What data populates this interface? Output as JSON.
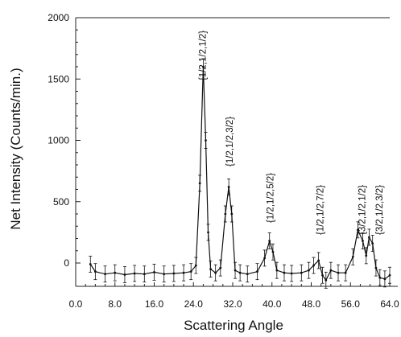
{
  "chart_data": {
    "type": "line",
    "title": "",
    "xlabel": "Scattering Angle",
    "ylabel": "Net Intensity (Counts/min.)",
    "xlim": [
      0,
      64
    ],
    "ylim": [
      -200,
      2000
    ],
    "x_tick_labels": [
      "0.0",
      "8.0",
      "16.0",
      "24.0",
      "32.0",
      "40.0",
      "48.0",
      "56.0",
      "64.0"
    ],
    "y_tick_labels": [
      "0",
      "500",
      "1000",
      "1500",
      "2000"
    ],
    "x_ticks": [
      0,
      8,
      16,
      24,
      32,
      40,
      48,
      56,
      64
    ],
    "y_ticks": [
      0,
      500,
      1000,
      1500,
      2000
    ],
    "grid": false,
    "series": [
      {
        "x": [
          3.0,
          4.0,
          6.0,
          8.0,
          10.0,
          12.0,
          14.0,
          16.0,
          18.0,
          20.0,
          22.0,
          23.5,
          24.5,
          25.3,
          26.0,
          26.5,
          27.0,
          27.5,
          28.5,
          29.5,
          30.5,
          31.2,
          31.8,
          32.5,
          33.5,
          35.0,
          37.0,
          38.5,
          39.5,
          40.2,
          41.0,
          42.5,
          44.0,
          46.0,
          47.5,
          48.5,
          49.5,
          50.3,
          51.0,
          52.0,
          53.5,
          55.0,
          56.5,
          57.5,
          58.5,
          59.2,
          59.8,
          60.5,
          61.2,
          62.0,
          63.0,
          64.0
        ],
        "values": [
          -10,
          -70,
          -90,
          -80,
          -95,
          -85,
          -90,
          -75,
          -90,
          -85,
          -80,
          -70,
          -20,
          650,
          1600,
          1000,
          250,
          -50,
          -80,
          -40,
          400,
          620,
          400,
          -60,
          -80,
          -90,
          -70,
          40,
          180,
          90,
          -60,
          -80,
          -85,
          -80,
          -60,
          -20,
          20,
          -100,
          -140,
          -60,
          -80,
          -80,
          50,
          270,
          180,
          60,
          210,
          160,
          -40,
          -120,
          -130,
          -100
        ]
      }
    ],
    "annotations": [
      "{1/2,1/2,1/2}",
      "{1/2,1/2,3/2}",
      "{1/2,1/2,5/2}",
      "{1/2,1/2,7/2}",
      "{3/2,1/2,1/2}",
      "{3/2,1/2,3/2}"
    ],
    "annotation_x": [
      26.0,
      31.5,
      39.8,
      50.0,
      58.5,
      62.0
    ]
  }
}
